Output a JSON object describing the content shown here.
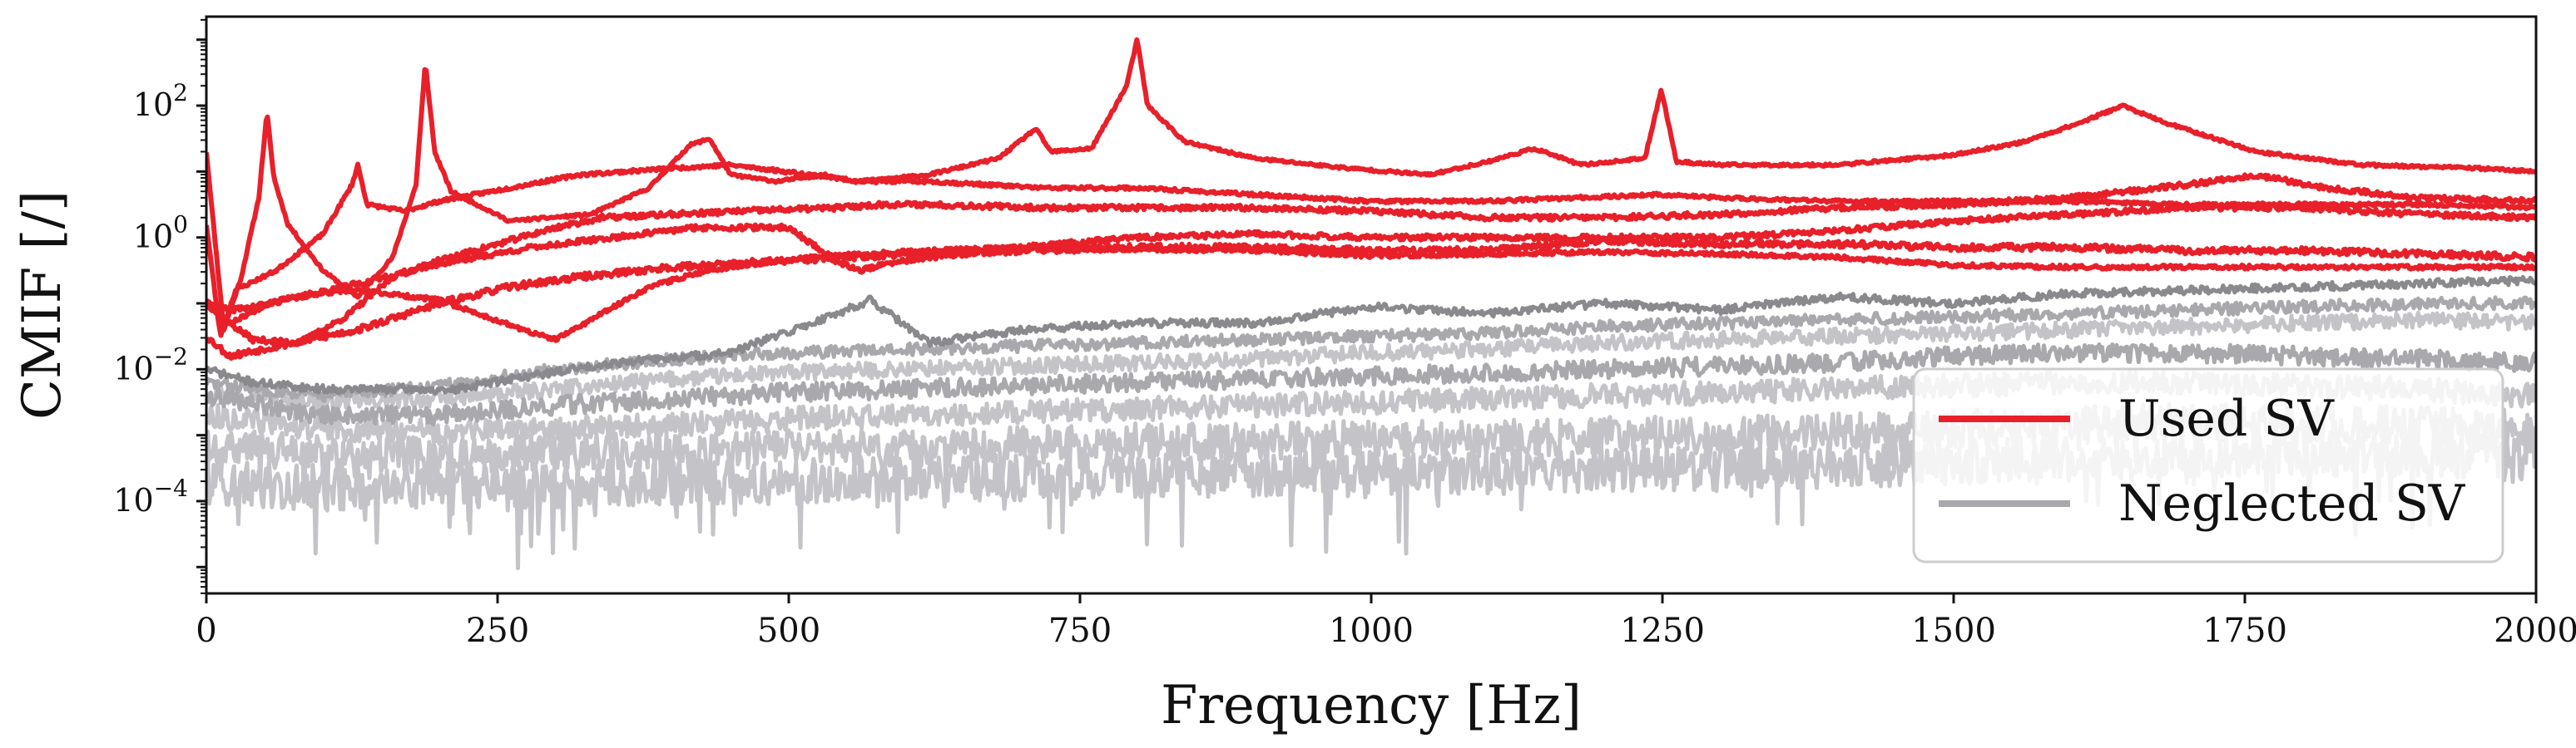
{
  "chart_data": {
    "type": "line",
    "title": "",
    "xlabel": "Frequency [Hz]",
    "ylabel": "CMIF [/]",
    "xlim": [
      0,
      2000
    ],
    "ylim_log10": [
      -5.4,
      3.35
    ],
    "yscale": "log",
    "grid": false,
    "legend_position": "lower-right",
    "xticks": [
      0,
      250,
      500,
      750,
      1000,
      1250,
      1500,
      1750,
      2000
    ],
    "xtick_labels": [
      "0",
      "250",
      "500",
      "750",
      "1000",
      "1250",
      "1500",
      "1750",
      "2000"
    ],
    "yticks": [
      {
        "exp": 2,
        "base": "10",
        "sup": "2"
      },
      {
        "exp": 0,
        "base": "10",
        "sup": "0"
      },
      {
        "exp": -2,
        "base": "10",
        "sup": "−2"
      },
      {
        "exp": -4,
        "base": "10",
        "sup": "−4"
      }
    ],
    "colors": {
      "used": "#e8202a",
      "neglected_dark": "#8a8a8e",
      "neglected_mid": "#a9a9ad",
      "neglected_light": "#c4c4c8"
    },
    "legend": [
      {
        "label": "Used SV",
        "color": "#e8202a"
      },
      {
        "label": "Neglected SV",
        "color": "#a9a9ad"
      }
    ],
    "series": [
      {
        "name": "Used SV 1",
        "group": "used",
        "noise": 0.02,
        "seed": 11,
        "x": [
          0,
          15,
          30,
          45,
          52,
          58,
          70,
          100,
          130,
          160,
          180,
          188,
          196,
          210,
          260,
          330,
          380,
          415,
          432,
          450,
          490,
          530,
          560,
          620,
          680,
          712,
          725,
          760,
          790,
          799,
          808,
          840,
          900,
          980,
          1050,
          1100,
          1140,
          1180,
          1235,
          1249,
          1262,
          1300,
          1400,
          1500,
          1560,
          1610,
          1645,
          1680,
          1760,
          1850,
          1950,
          2000
        ],
        "y": [
          1.3,
          -1.4,
          -0.6,
          0.6,
          1.9,
          0.9,
          0.2,
          -0.5,
          -0.9,
          -0.3,
          0.8,
          2.65,
          1.3,
          0.7,
          0.25,
          0.35,
          0.75,
          1.4,
          1.5,
          0.95,
          0.85,
          0.95,
          0.85,
          0.95,
          1.2,
          1.65,
          1.3,
          1.35,
          2.3,
          3.0,
          2.0,
          1.45,
          1.2,
          1.05,
          0.95,
          1.15,
          1.35,
          1.1,
          1.2,
          2.25,
          1.15,
          1.1,
          1.1,
          1.25,
          1.45,
          1.75,
          2.0,
          1.75,
          1.3,
          1.1,
          1.05,
          1.0
        ]
      },
      {
        "name": "Used SV 2",
        "group": "used",
        "noise": 0.025,
        "seed": 23,
        "x": [
          0,
          12,
          25,
          60,
          100,
          125,
          130,
          138,
          170,
          200,
          260,
          320,
          400,
          450,
          520,
          560,
          620,
          720,
          800,
          900,
          1000,
          1100,
          1248,
          1300,
          1400,
          1500,
          1600,
          1700,
          1800,
          1900,
          2000
        ],
        "y": [
          0.2,
          -1.5,
          -0.8,
          -0.5,
          0.05,
          0.8,
          1.1,
          0.5,
          0.4,
          0.55,
          0.75,
          0.95,
          1.05,
          1.1,
          0.95,
          0.85,
          0.85,
          0.75,
          0.75,
          0.65,
          0.55,
          0.55,
          0.65,
          0.6,
          0.55,
          0.55,
          0.55,
          0.5,
          0.5,
          0.5,
          0.45
        ]
      },
      {
        "name": "Used SV 3",
        "group": "used",
        "noise": 0.04,
        "seed": 37,
        "x": [
          0,
          20,
          40,
          80,
          120,
          160,
          200,
          260,
          300,
          340,
          400,
          460,
          540,
          580,
          620,
          720,
          800,
          900,
          1000,
          1100,
          1200,
          1300,
          1400,
          1500,
          1600,
          1700,
          1760,
          1820,
          1900,
          2000
        ],
        "y": [
          -1.0,
          -1.3,
          -1.55,
          -1.6,
          -1.2,
          -0.6,
          -0.35,
          -0.05,
          0.15,
          0.3,
          0.35,
          0.4,
          0.45,
          0.5,
          0.5,
          0.45,
          0.45,
          0.45,
          0.4,
          0.3,
          0.3,
          0.35,
          0.45,
          0.5,
          0.6,
          0.8,
          0.95,
          0.75,
          0.6,
          0.55
        ]
      },
      {
        "name": "Used SV 4",
        "group": "used",
        "noise": 0.04,
        "seed": 41,
        "x": [
          0,
          20,
          40,
          80,
          130,
          200,
          280,
          350,
          420,
          500,
          540,
          560,
          600,
          700,
          800,
          900,
          1000,
          1100,
          1200,
          1300,
          1400,
          1500,
          1600,
          1700,
          1800,
          1900,
          2000
        ],
        "y": [
          -1.0,
          -1.1,
          -1.05,
          -0.9,
          -0.7,
          -0.4,
          -0.15,
          0.0,
          0.15,
          0.15,
          -0.35,
          -0.5,
          -0.35,
          -0.15,
          0.0,
          0.05,
          0.0,
          0.0,
          0.0,
          0.0,
          0.1,
          0.25,
          0.35,
          0.45,
          0.45,
          0.35,
          0.3
        ]
      },
      {
        "name": "Used SV 5",
        "group": "used",
        "noise": 0.05,
        "seed": 53,
        "x": [
          0,
          20,
          60,
          130,
          200,
          260,
          320,
          400,
          500,
          600,
          700,
          800,
          900,
          1000,
          1100,
          1200,
          1300,
          1400,
          1500,
          1600,
          1700,
          1800,
          1900,
          2000
        ],
        "y": [
          -1.5,
          -1.8,
          -1.65,
          -1.4,
          -1.0,
          -0.75,
          -0.6,
          -0.45,
          -0.35,
          -0.25,
          -0.2,
          -0.15,
          -0.15,
          -0.2,
          -0.2,
          -0.05,
          -0.1,
          -0.1,
          -0.15,
          -0.15,
          -0.2,
          -0.2,
          -0.25,
          -0.3
        ]
      },
      {
        "name": "Used SV 6",
        "group": "used",
        "noise": 0.03,
        "seed": 67,
        "x": [
          0,
          20,
          60,
          100,
          130,
          200,
          280,
          300,
          340,
          380,
          430,
          480,
          520,
          560,
          620,
          700,
          800,
          900,
          1000,
          1100,
          1200,
          1300,
          1400,
          1500,
          1600,
          1700,
          1800,
          1900,
          2000
        ],
        "y": [
          -1.0,
          -1.3,
          -0.95,
          -0.85,
          -0.8,
          -0.95,
          -1.45,
          -1.55,
          -1.15,
          -0.75,
          -0.5,
          -0.38,
          -0.3,
          -0.25,
          -0.2,
          -0.15,
          -0.18,
          -0.2,
          -0.28,
          -0.25,
          -0.22,
          -0.25,
          -0.3,
          -0.42,
          -0.45,
          -0.45,
          -0.45,
          -0.45,
          -0.45
        ]
      },
      {
        "name": "Neglected SV 1",
        "group": "neglected_dark",
        "noise": 0.06,
        "seed": 71,
        "x": [
          0,
          40,
          100,
          190,
          200,
          260,
          350,
          450,
          520,
          570,
          620,
          700,
          800,
          900,
          1000,
          1100,
          1200,
          1300,
          1400,
          1500,
          1600,
          1700,
          1800,
          1900,
          2000
        ],
        "y": [
          -2.0,
          -2.2,
          -2.3,
          -2.3,
          -2.35,
          -2.15,
          -1.9,
          -1.75,
          -1.3,
          -0.95,
          -1.6,
          -1.4,
          -1.3,
          -1.3,
          -1.05,
          -1.15,
          -1.0,
          -1.1,
          -0.9,
          -1.0,
          -0.85,
          -0.8,
          -0.75,
          -0.7,
          -0.65
        ]
      },
      {
        "name": "Neglected SV 2",
        "group": "neglected_mid",
        "noise": 0.09,
        "seed": 83,
        "x": [
          0,
          100,
          200,
          300,
          400,
          500,
          600,
          700,
          800,
          900,
          1000,
          1100,
          1200,
          1300,
          1400,
          1500,
          1600,
          1700,
          1800,
          1900,
          2000
        ],
        "y": [
          -2.2,
          -2.4,
          -2.25,
          -2.0,
          -1.85,
          -1.75,
          -1.7,
          -1.65,
          -1.6,
          -1.55,
          -1.5,
          -1.45,
          -1.35,
          -1.3,
          -1.25,
          -1.2,
          -1.15,
          -1.1,
          -1.05,
          -1.0,
          -1.0
        ]
      },
      {
        "name": "Neglected SV 3",
        "group": "neglected_light",
        "noise": 0.12,
        "seed": 97,
        "x": [
          0,
          100,
          200,
          300,
          400,
          500,
          600,
          700,
          800,
          900,
          1000,
          1100,
          1200,
          1300,
          1400,
          1500,
          1600,
          1700,
          1800,
          1900,
          2000
        ],
        "y": [
          -2.3,
          -2.5,
          -2.45,
          -2.3,
          -2.15,
          -2.05,
          -2.0,
          -1.95,
          -1.9,
          -1.85,
          -1.75,
          -1.7,
          -1.6,
          -1.55,
          -1.5,
          -1.45,
          -1.4,
          -1.35,
          -1.3,
          -1.25,
          -1.3
        ]
      },
      {
        "name": "Neglected SV 4",
        "group": "neglected_mid",
        "noise": 0.14,
        "seed": 109,
        "x": [
          0,
          100,
          200,
          300,
          400,
          500,
          600,
          700,
          800,
          900,
          1000,
          1100,
          1200,
          1300,
          1400,
          1500,
          1600,
          1700,
          1800,
          1900,
          2000
        ],
        "y": [
          -2.4,
          -2.7,
          -2.7,
          -2.55,
          -2.45,
          -2.35,
          -2.3,
          -2.25,
          -2.2,
          -2.15,
          -2.1,
          -2.05,
          -2.0,
          -1.95,
          -1.9,
          -1.8,
          -1.75,
          -1.75,
          -1.8,
          -1.85,
          -1.9
        ]
      },
      {
        "name": "Neglected SV 5",
        "group": "neglected_light",
        "noise": 0.18,
        "seed": 113,
        "x": [
          0,
          100,
          200,
          300,
          400,
          500,
          600,
          700,
          800,
          900,
          1000,
          1100,
          1200,
          1300,
          1400,
          1500,
          1600,
          1700,
          1800,
          1900,
          2000
        ],
        "y": [
          -2.7,
          -2.9,
          -2.95,
          -2.9,
          -2.85,
          -2.75,
          -2.7,
          -2.65,
          -2.6,
          -2.55,
          -2.5,
          -2.45,
          -2.4,
          -2.35,
          -2.3,
          -2.25,
          -2.2,
          -2.2,
          -2.25,
          -2.3,
          -2.4
        ]
      },
      {
        "name": "Neglected SV 6",
        "group": "neglected_light",
        "noise": 0.28,
        "seed": 127,
        "x": [
          0,
          100,
          200,
          300,
          400,
          500,
          600,
          700,
          800,
          900,
          1000,
          1100,
          1200,
          1300,
          1400,
          1500,
          1600,
          1700,
          1800,
          1900,
          2000
        ],
        "y": [
          -3.1,
          -3.3,
          -3.3,
          -3.25,
          -3.25,
          -3.2,
          -3.2,
          -3.15,
          -3.1,
          -3.1,
          -3.05,
          -3.05,
          -3.0,
          -3.0,
          -2.95,
          -2.9,
          -2.85,
          -2.8,
          -2.8,
          -2.85,
          -2.9
        ]
      },
      {
        "name": "Neglected SV 7",
        "group": "neglected_light",
        "noise": 0.35,
        "seed": 139,
        "x": [
          0,
          100,
          200,
          300,
          400,
          500,
          600,
          700,
          800,
          900,
          1000,
          1100,
          1200,
          1300,
          1400,
          1500,
          1600,
          1700,
          1800,
          1900,
          2000
        ],
        "y": [
          -3.7,
          -3.8,
          -3.75,
          -3.75,
          -3.7,
          -3.7,
          -3.65,
          -3.65,
          -3.6,
          -3.6,
          -3.6,
          -3.55,
          -3.5,
          -3.5,
          -3.45,
          -3.4,
          -3.35,
          -3.3,
          -3.3,
          -3.3,
          -3.35
        ]
      }
    ]
  }
}
